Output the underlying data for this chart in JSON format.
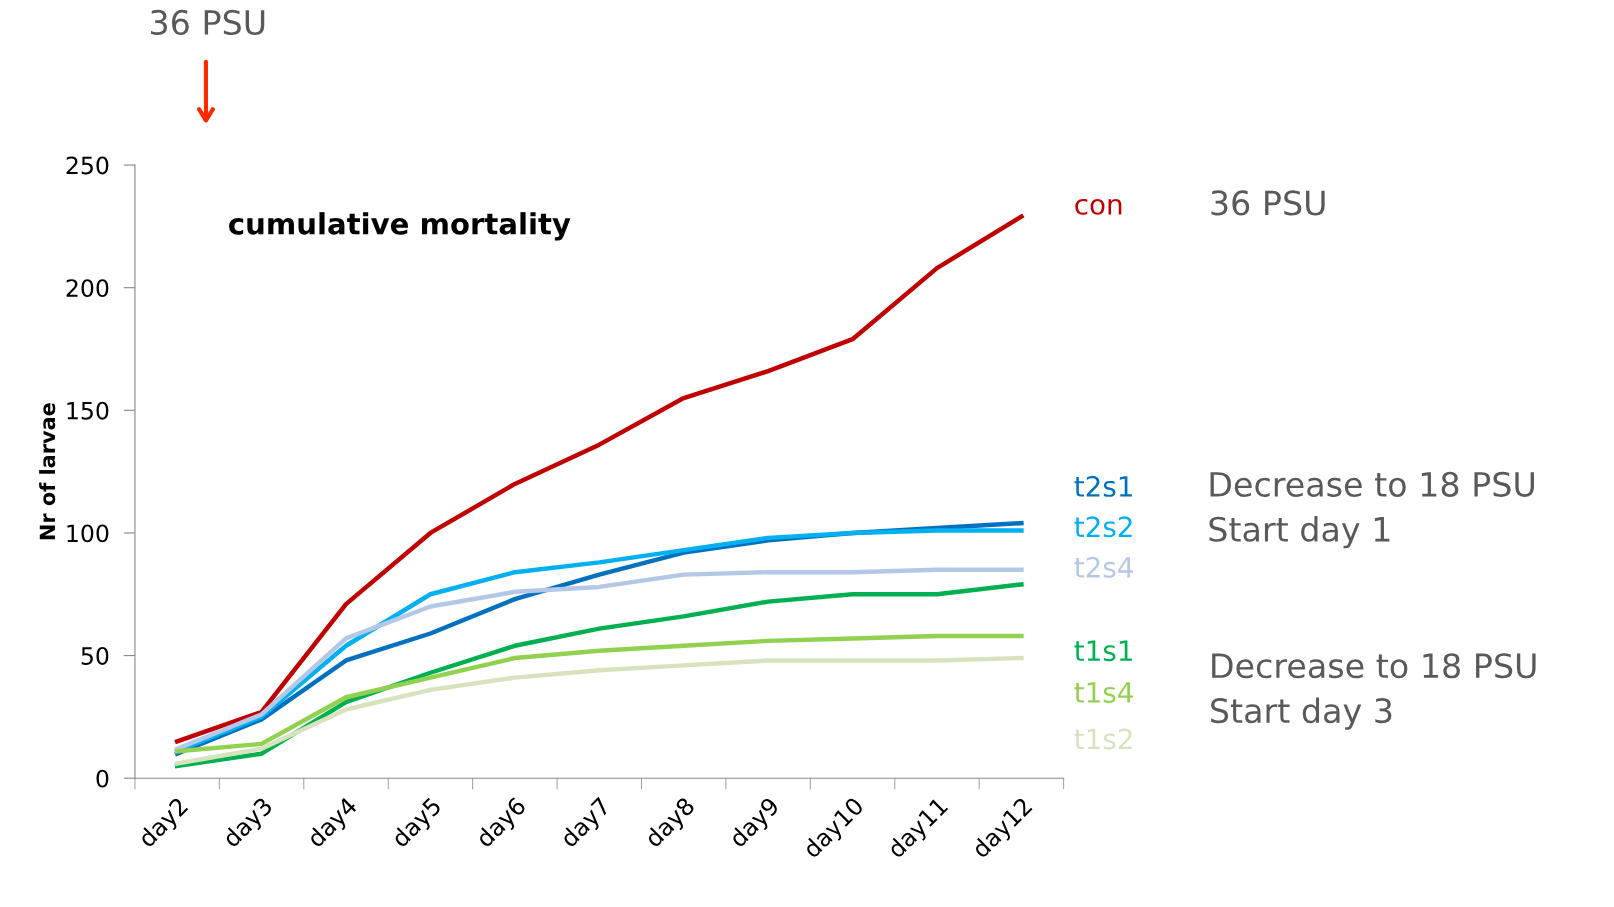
{
  "chart_data": {
    "type": "line",
    "title": "cumulative mortality",
    "ylabel": "Nr of larvae",
    "categories": [
      "day2",
      "day3",
      "day4",
      "day5",
      "day6",
      "day7",
      "day8",
      "day9",
      "day10",
      "day11",
      "day12"
    ],
    "ylim": [
      0,
      250
    ],
    "yticks": [
      0,
      50,
      100,
      150,
      200,
      250
    ],
    "grid": false,
    "legend": false,
    "marker": "none",
    "line_style": "solid",
    "series": [
      {
        "name": "con",
        "color": "#c00000",
        "values": [
          15,
          27,
          71,
          100,
          120,
          136,
          155,
          166,
          179,
          208,
          229
        ]
      },
      {
        "name": "t2s1",
        "color": "#0070c0",
        "values": [
          10,
          24,
          48,
          59,
          73,
          83,
          92,
          97,
          100,
          102,
          104
        ]
      },
      {
        "name": "t2s2",
        "color": "#00b0f0",
        "values": [
          11,
          25,
          54,
          75,
          84,
          88,
          93,
          98,
          100,
          101,
          101
        ]
      },
      {
        "name": "t2s4",
        "color": "#b4c7e7",
        "values": [
          12,
          26,
          57,
          70,
          76,
          78,
          83,
          84,
          84,
          85,
          85
        ]
      },
      {
        "name": "t1s1",
        "color": "#00b050",
        "values": [
          5,
          10,
          31,
          43,
          54,
          61,
          66,
          72,
          75,
          75,
          79
        ]
      },
      {
        "name": "t1s4",
        "color": "#92d050",
        "values": [
          11,
          14,
          33,
          41,
          49,
          52,
          54,
          56,
          57,
          58,
          58
        ]
      },
      {
        "name": "t1s2",
        "color": "#d6e3bc",
        "values": [
          6,
          12,
          28,
          36,
          41,
          44,
          46,
          48,
          48,
          48,
          49
        ]
      }
    ],
    "annotations": [
      "36 PSU",
      "36 PSU",
      "Decrease to 18 PSU\nStart day 1",
      "Decrease to 18 PSU\nStart day 3"
    ]
  }
}
